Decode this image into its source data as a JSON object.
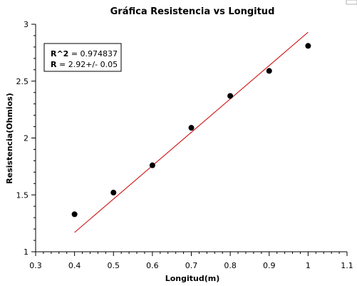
{
  "chart_data": {
    "type": "scatter",
    "title": "Gráfica Resistencia vs Longitud",
    "xlabel": "Longitud(m)",
    "ylabel": "Resistencia(Ohmios)",
    "xlim": [
      0.3,
      1.1
    ],
    "ylim": [
      1,
      3
    ],
    "x_ticks": [
      "0.3",
      "0.4",
      "0.5",
      "0.6",
      "0.7",
      "0.8",
      "0.9",
      "1",
      "1.1"
    ],
    "y_ticks": [
      "1",
      "1.5",
      "2",
      "2.5",
      "3"
    ],
    "grid": false,
    "legend_position": "top-left",
    "series": [
      {
        "x": [
          0.4,
          0.5,
          0.6,
          0.7,
          0.8,
          0.9,
          1.0
        ],
        "y": [
          1.33,
          1.52,
          1.76,
          2.09,
          2.37,
          2.59,
          2.81
        ],
        "color": "#000000"
      }
    ],
    "fit_line": {
      "x": [
        0.4,
        1.0
      ],
      "y": [
        1.17,
        2.93
      ],
      "color": "#cc0000"
    },
    "annotation": {
      "line1_key": "R^2",
      "line1_value": " = 0.974837",
      "line2_key": "R",
      "line2_value": " = 2.92+/- 0.05"
    }
  }
}
